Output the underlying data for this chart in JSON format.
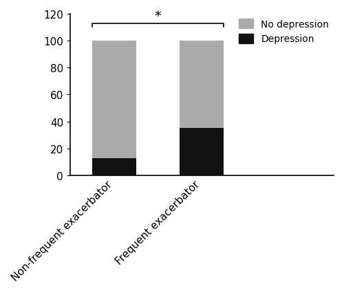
{
  "categories": [
    "Non-frequent exacerbator",
    "Frequent exacerbator"
  ],
  "depression_values": [
    12.5,
    35.09
  ],
  "no_depression_values": [
    87.5,
    64.91
  ],
  "bar_color_depression": "#111111",
  "bar_color_no_depression": "#aaaaaa",
  "bar_width": 0.5,
  "ylim": [
    0,
    120
  ],
  "yticks": [
    0,
    20,
    40,
    60,
    80,
    100,
    120
  ],
  "legend_labels": [
    "No depression",
    "Depression"
  ],
  "significance_line_y": 113,
  "significance_star": "*",
  "bar_positions": [
    0.5,
    1.5
  ],
  "xlim": [
    0,
    3.0
  ]
}
